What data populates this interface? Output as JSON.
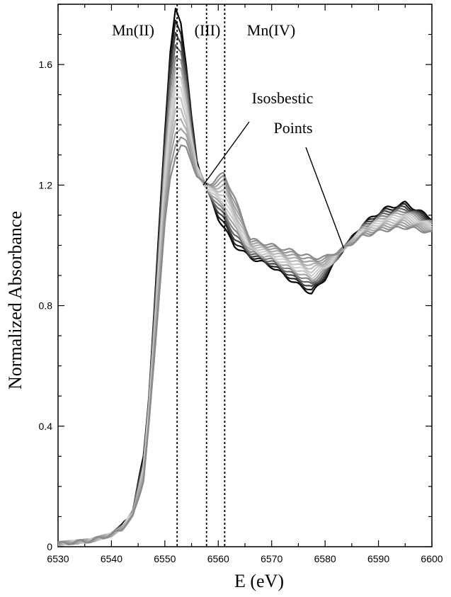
{
  "chart_data": {
    "type": "line",
    "xlabel": "E (eV)",
    "ylabel": "Normalized Absorbance",
    "xlim": [
      6530,
      6600
    ],
    "ylim": [
      0,
      1.8
    ],
    "x_ticks": [
      "6530",
      "6540",
      "6550",
      "6560",
      "6570",
      "6580",
      "6590",
      "6600"
    ],
    "y_ticks": [
      "0",
      "0.4",
      "0.8",
      "1.2",
      "1.6"
    ],
    "y_tick_values": [
      0,
      0.4,
      0.8,
      1.2,
      1.6
    ],
    "x_tick_values": [
      6530,
      6540,
      6550,
      6560,
      6570,
      6580,
      6590,
      6600
    ],
    "region_labels": [
      {
        "text": "Mn(II)",
        "line_x": 6552.3
      },
      {
        "text": "(III)",
        "line_x": 6557.8
      },
      {
        "text": "Mn(IV)",
        "line_x": 6561.2
      }
    ],
    "annotation": {
      "line1": "Isosbestic",
      "line2": "Points",
      "points": [
        {
          "x": 6557.2,
          "y": 1.2
        },
        {
          "x": 6583.5,
          "y": 0.99
        }
      ]
    },
    "series_count": 14,
    "series_color_gradient": [
      "#000000",
      "#d8d8d8",
      "#8a8a8a"
    ],
    "reference_spectra": {
      "mn2": {
        "x": [
          6530,
          6536,
          6540,
          6542,
          6544,
          6546,
          6547,
          6548,
          6549,
          6550,
          6551,
          6552,
          6553,
          6554,
          6555,
          6556,
          6557.5,
          6560,
          6563,
          6566,
          6570,
          6574,
          6577.5,
          6580,
          6583.5,
          6587,
          6591,
          6595,
          6598,
          6600
        ],
        "y": [
          0.01,
          0.02,
          0.04,
          0.07,
          0.12,
          0.3,
          0.5,
          0.78,
          1.08,
          1.38,
          1.64,
          1.78,
          1.74,
          1.6,
          1.42,
          1.28,
          1.2,
          1.09,
          1.0,
          0.96,
          0.93,
          0.88,
          0.84,
          0.89,
          0.99,
          1.07,
          1.12,
          1.14,
          1.11,
          1.09
        ]
      },
      "mn4": {
        "x": [
          6530,
          6536,
          6540,
          6542,
          6544,
          6546,
          6547,
          6548,
          6549,
          6550,
          6551,
          6552,
          6553,
          6554,
          6555,
          6556,
          6557.5,
          6559,
          6561,
          6563,
          6566,
          6570,
          6574,
          6577.5,
          6580,
          6583.5,
          6587,
          6591,
          6595,
          6598,
          6600
        ],
        "y": [
          0.01,
          0.02,
          0.04,
          0.06,
          0.1,
          0.22,
          0.4,
          0.62,
          0.85,
          1.07,
          1.22,
          1.3,
          1.33,
          1.32,
          1.28,
          1.23,
          1.2,
          1.21,
          1.24,
          1.16,
          1.02,
          1.0,
          0.98,
          0.96,
          0.96,
          0.99,
          1.03,
          1.05,
          1.06,
          1.05,
          1.04
        ]
      }
    }
  }
}
